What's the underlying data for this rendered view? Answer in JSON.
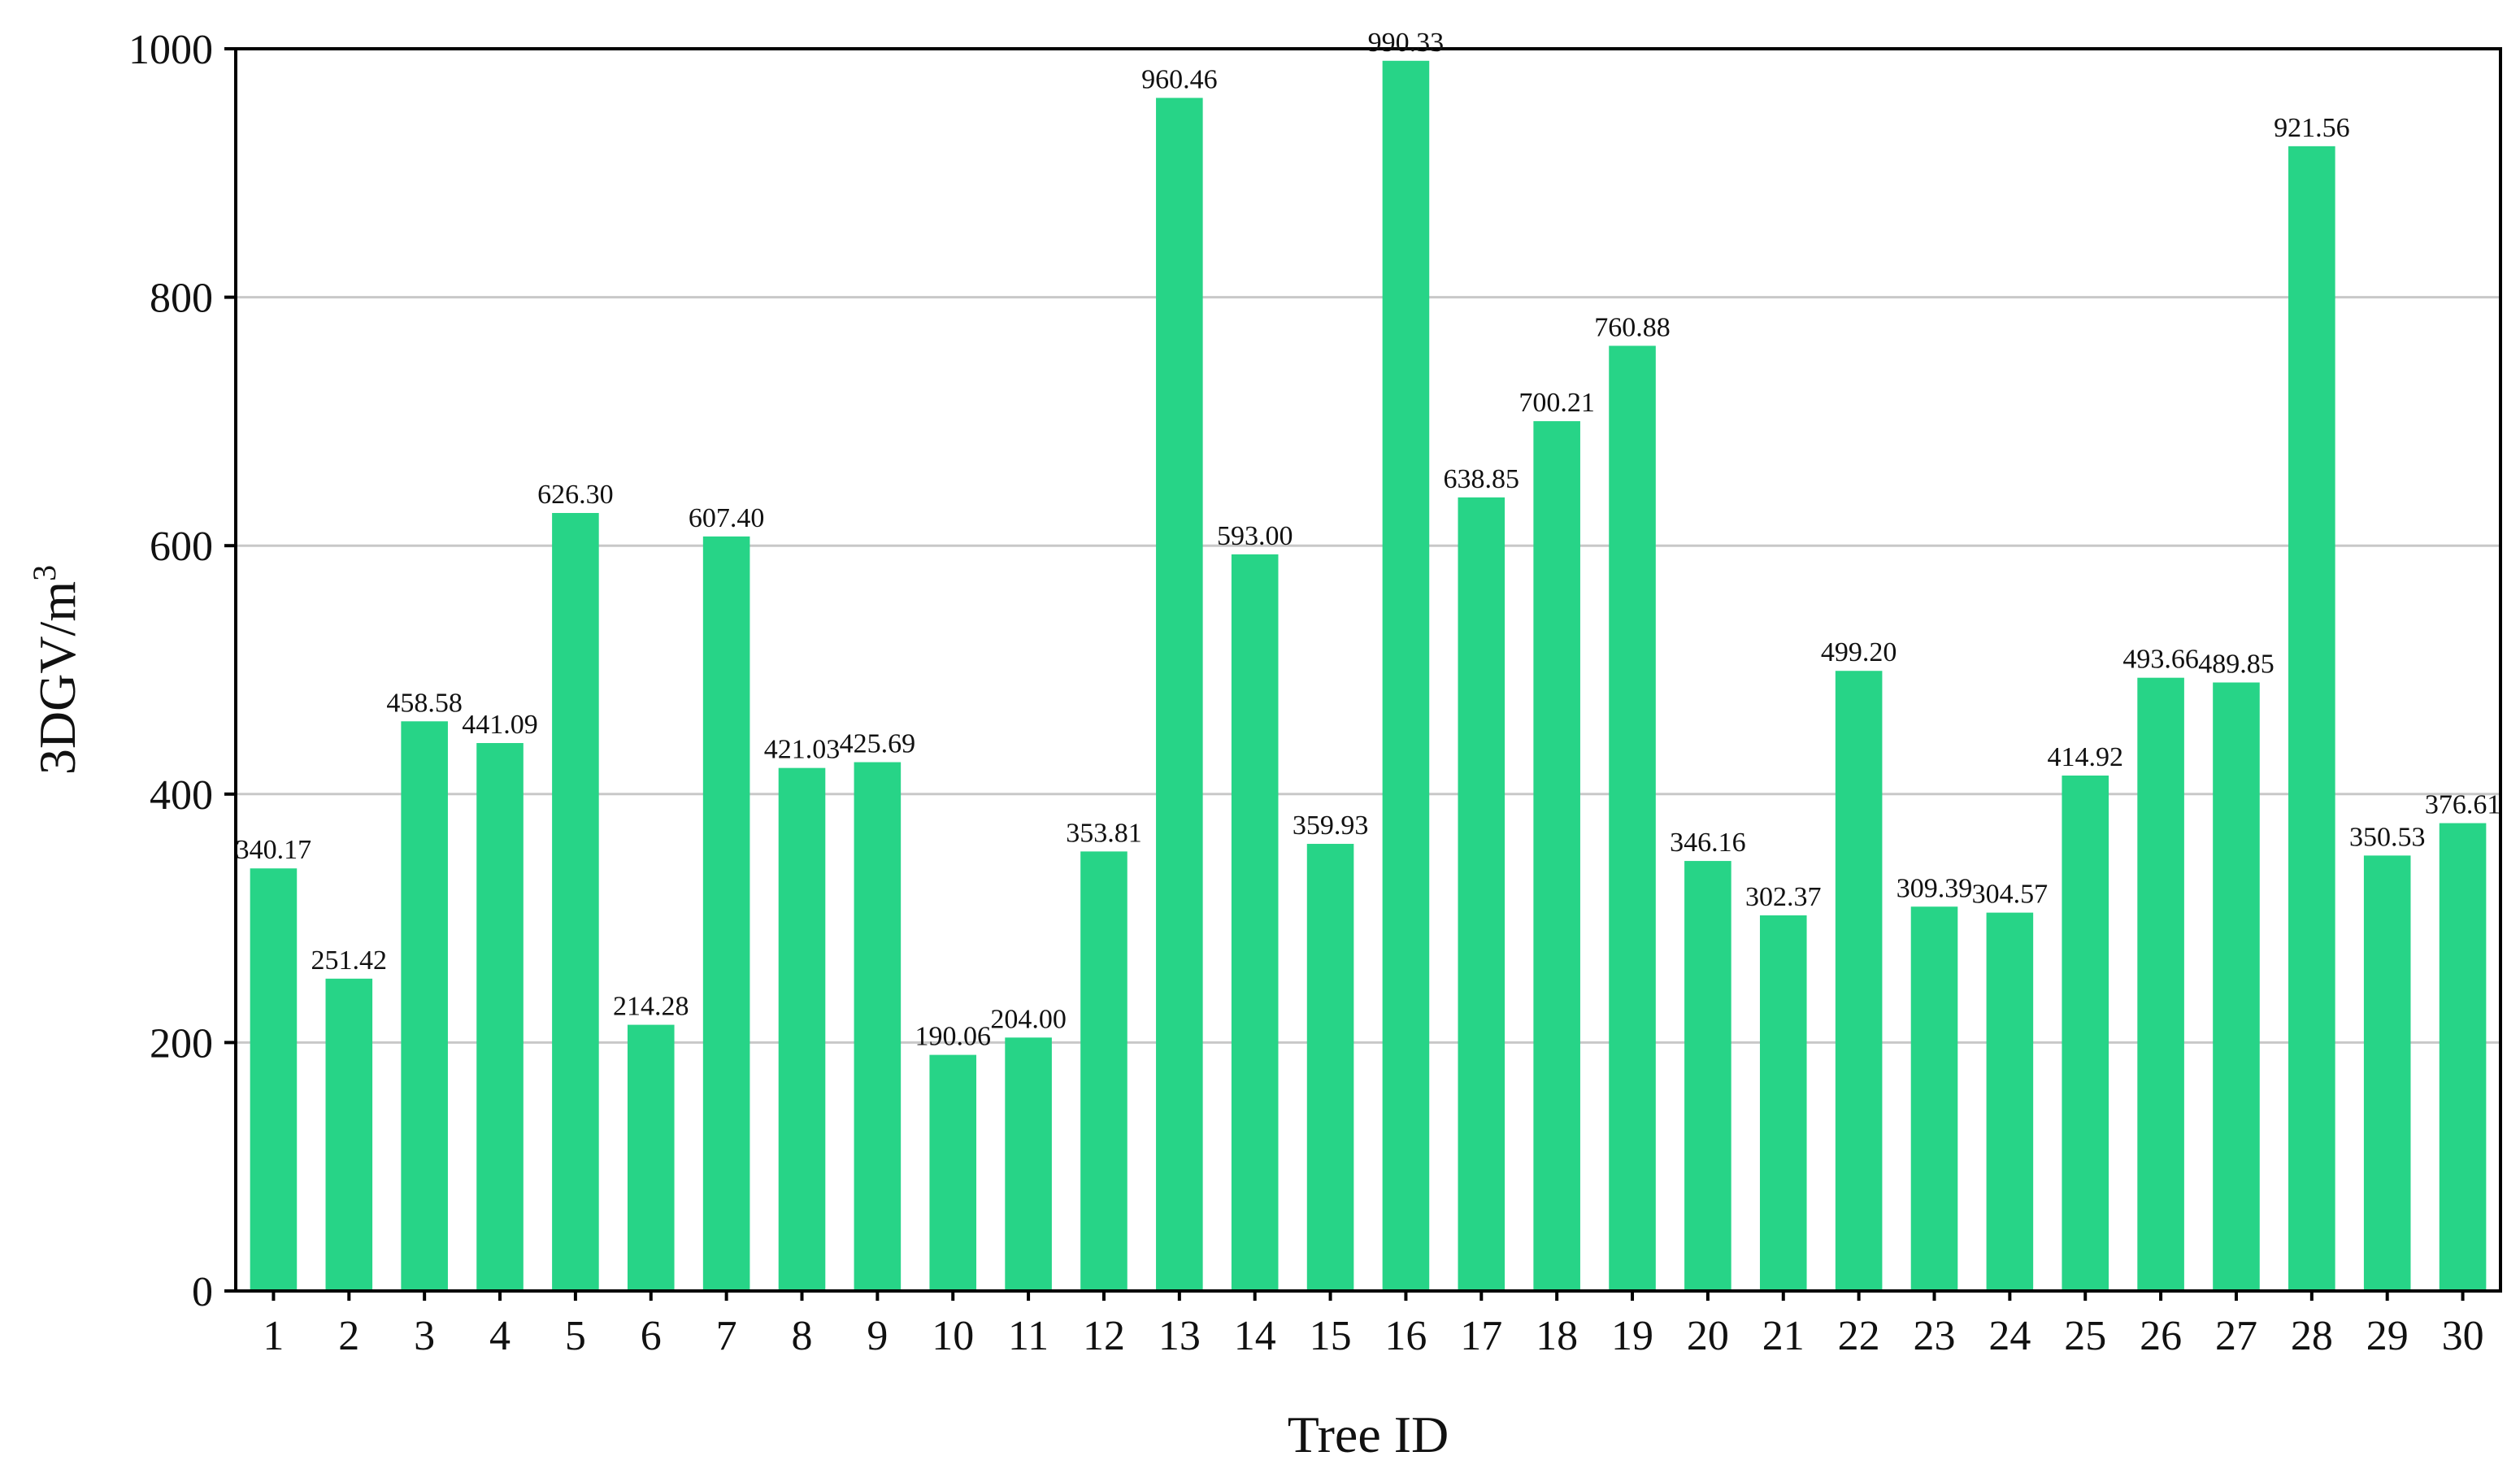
{
  "chart_data": {
    "type": "bar",
    "xlabel": "Tree ID",
    "ylabel_base": "3DGV/m",
    "ylabel_sup": "3",
    "ylim": [
      0,
      1000
    ],
    "yticks": [
      0,
      200,
      400,
      600,
      800,
      1000
    ],
    "grid": true,
    "bar_color": "#27d487",
    "categories": [
      "1",
      "2",
      "3",
      "4",
      "5",
      "6",
      "7",
      "8",
      "9",
      "10",
      "11",
      "12",
      "13",
      "14",
      "15",
      "16",
      "17",
      "18",
      "19",
      "20",
      "21",
      "22",
      "23",
      "24",
      "25",
      "26",
      "27",
      "28",
      "29",
      "30"
    ],
    "values": [
      340.17,
      251.42,
      458.58,
      441.09,
      626.3,
      214.28,
      607.4,
      421.03,
      425.69,
      190.06,
      204.0,
      353.81,
      960.46,
      593.0,
      359.93,
      990.33,
      638.85,
      700.21,
      760.88,
      346.16,
      302.37,
      499.2,
      309.39,
      304.57,
      414.92,
      493.66,
      489.85,
      921.56,
      350.53,
      376.61
    ],
    "value_labels": [
      "340.17",
      "251.42",
      "458.58",
      "441.09",
      "626.30",
      "214.28",
      "607.40",
      "421.03",
      "425.69",
      "190.06",
      "204.00",
      "353.81",
      "960.46",
      "593.00",
      "359.93",
      "990.33",
      "638.85",
      "700.21",
      "760.88",
      "346.16",
      "302.37",
      "499.20",
      "309.39",
      "304.57",
      "414.92",
      "493.66",
      "489.85",
      "921.56",
      "350.53",
      "376.61"
    ]
  }
}
